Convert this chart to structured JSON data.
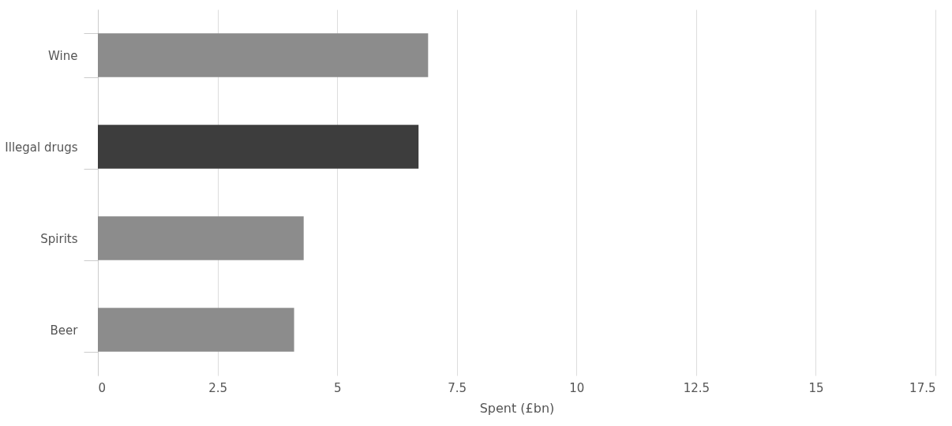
{
  "chart_data": {
    "type": "bar",
    "orientation": "horizontal",
    "xlabel": "Spent (£bn)",
    "categories": [
      "Wine",
      "Illegal drugs",
      "Spirits",
      "Beer"
    ],
    "values": [
      6.9,
      6.7,
      4.3,
      4.1
    ],
    "colors": [
      "#8c8c8c",
      "#3d3d3d",
      "#8c8c8c",
      "#8c8c8c"
    ],
    "xlim": [
      0,
      17.5
    ],
    "xticks": [
      0,
      2.5,
      5,
      7.5,
      10,
      12.5,
      15,
      17.5
    ],
    "grid": "x"
  }
}
